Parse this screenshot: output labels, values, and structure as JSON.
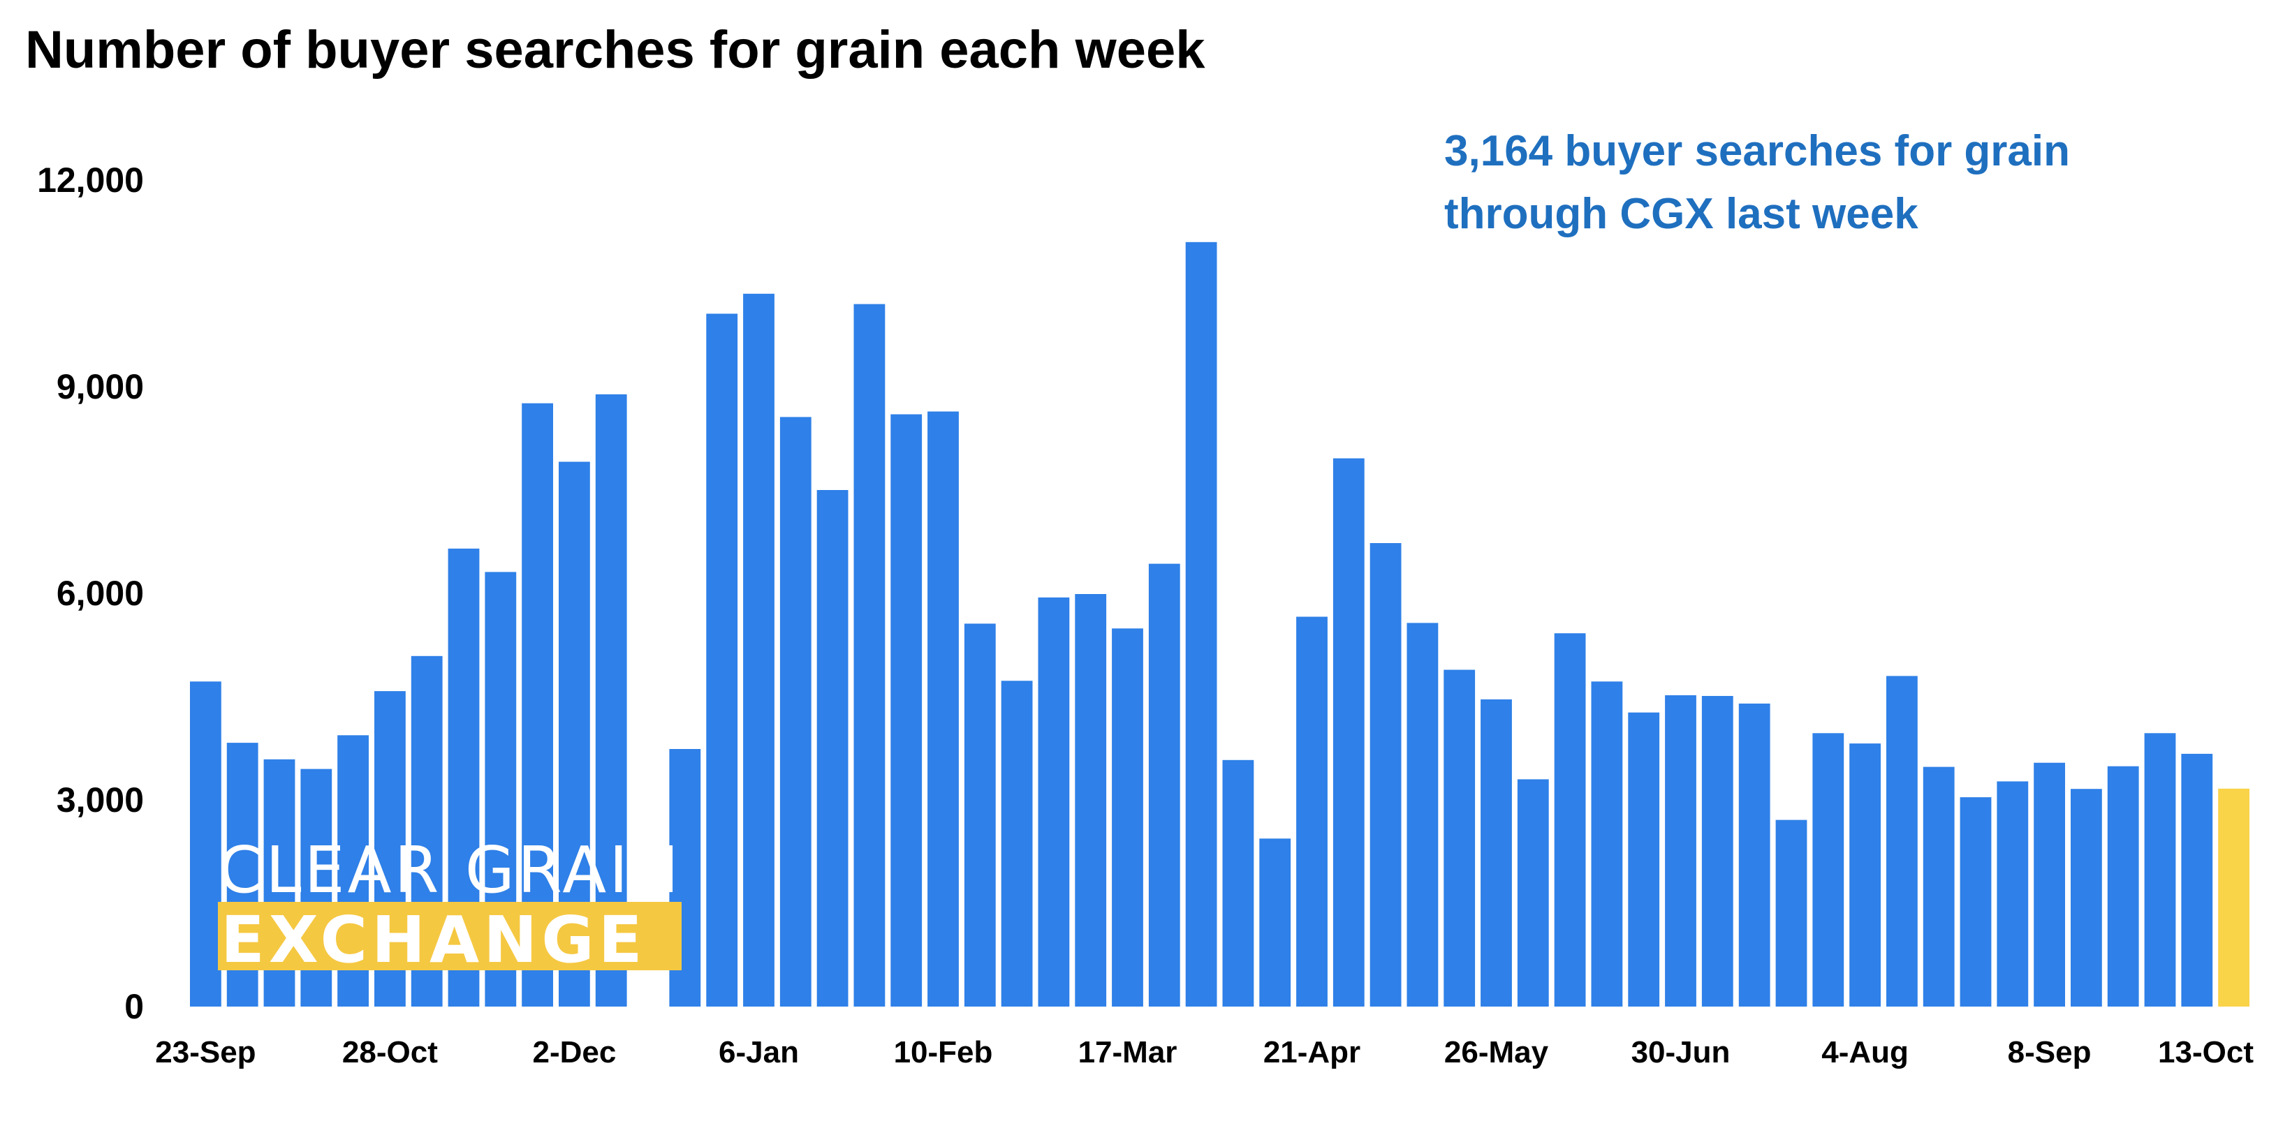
{
  "colors": {
    "bar": "#2F80E8",
    "highlight": "#F9D348",
    "callout": "#1F6FBF",
    "logo_band": "#F5C842"
  },
  "annotation": {
    "line1": "3,164 buyer searches for grain",
    "line2": "through CGX last week"
  },
  "logo": {
    "line1": "CLEAR GRAIN",
    "line2": "EXCHANGE"
  },
  "chart_data": {
    "type": "bar",
    "title": "Number of buyer searches for grain each week",
    "xlabel": "",
    "ylabel": "",
    "ylim": [
      0,
      12000
    ],
    "yticks": [
      0,
      3000,
      6000,
      9000,
      12000
    ],
    "ytick_labels": [
      "0",
      "3,000",
      "6,000",
      "9,000",
      "12,000"
    ],
    "grid": false,
    "xtick_labels": [
      {
        "index": 0,
        "label": "23-Sep"
      },
      {
        "index": 5,
        "label": "28-Oct"
      },
      {
        "index": 10,
        "label": "2-Dec"
      },
      {
        "index": 15,
        "label": "6-Jan"
      },
      {
        "index": 20,
        "label": "10-Feb"
      },
      {
        "index": 25,
        "label": "17-Mar"
      },
      {
        "index": 30,
        "label": "21-Apr"
      },
      {
        "index": 35,
        "label": "26-May"
      },
      {
        "index": 40,
        "label": "30-Jun"
      },
      {
        "index": 45,
        "label": "4-Aug"
      },
      {
        "index": 50,
        "label": "8-Sep"
      },
      {
        "index": 55,
        "label": "13-Oct"
      }
    ],
    "highlight_index": 55,
    "values": [
      4720,
      3830,
      3590,
      3450,
      3940,
      4580,
      5090,
      6650,
      6310,
      8760,
      7910,
      8890,
      0,
      3740,
      10060,
      10350,
      8560,
      7500,
      10200,
      8600,
      8640,
      5560,
      4730,
      5940,
      5990,
      5490,
      6430,
      11100,
      3580,
      2440,
      5660,
      7960,
      6730,
      5570,
      4890,
      4460,
      3300,
      5420,
      4720,
      4270,
      4520,
      4510,
      4400,
      2710,
      3970,
      3820,
      4800,
      3480,
      3040,
      3270,
      3540,
      3160,
      3490,
      3970,
      3670,
      3164
    ]
  }
}
